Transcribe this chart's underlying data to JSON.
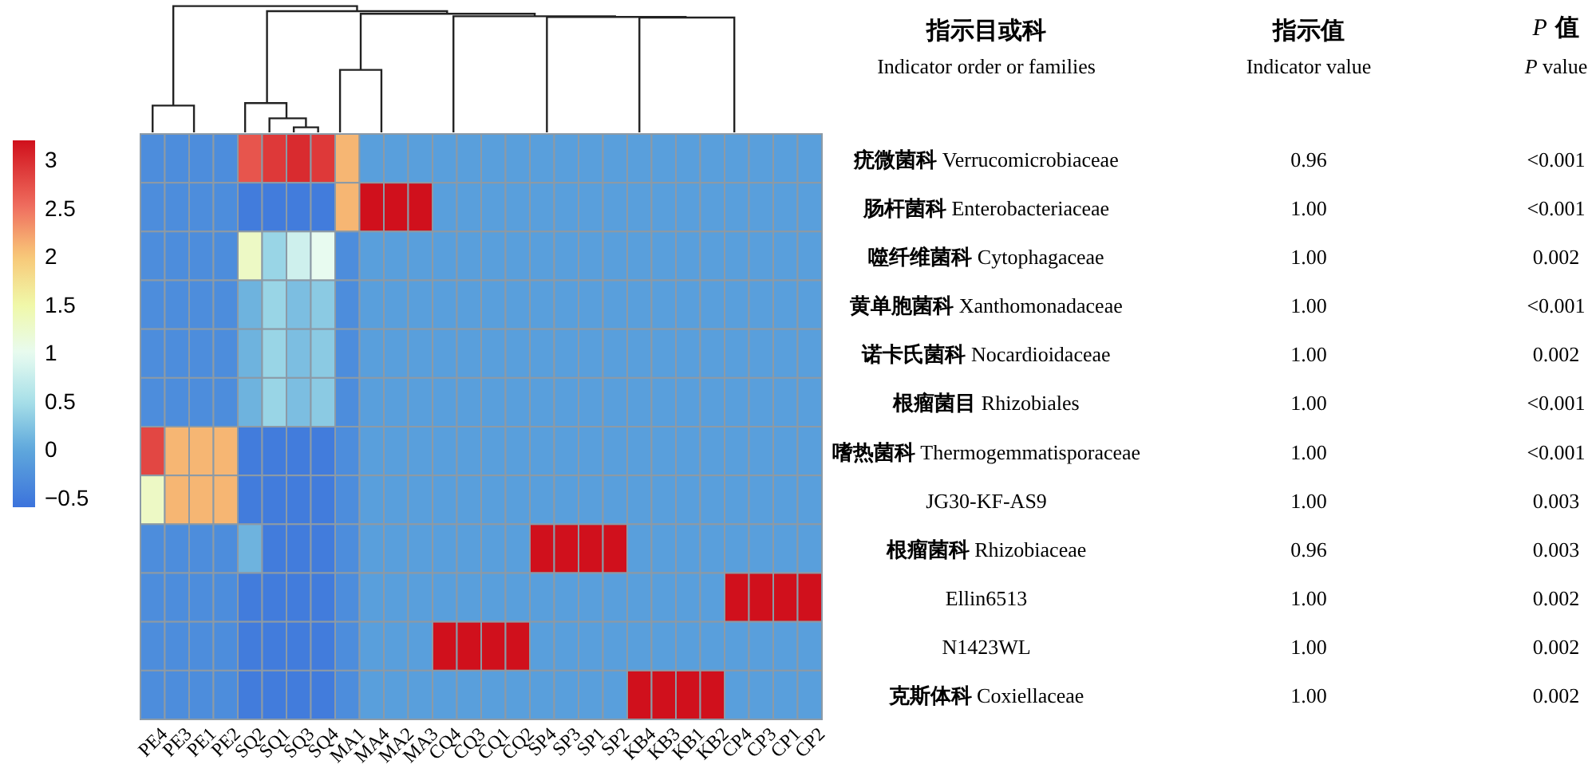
{
  "chart_data": {
    "type": "heatmap",
    "categories": [
      "PE4",
      "PE3",
      "PE1",
      "PE2",
      "SQ2",
      "SQ1",
      "SQ3",
      "SQ4",
      "MA1",
      "MA4",
      "MA2",
      "MA3",
      "CQ4",
      "CQ3",
      "CQ1",
      "CQ2",
      "SP4",
      "SP3",
      "SP1",
      "SP2",
      "KB4",
      "KB3",
      "KB1",
      "KB2",
      "CP4",
      "CP3",
      "CP1",
      "CP2"
    ],
    "y_categories": [
      "疣微菌科 Verrucomicrobiaceae",
      "肠杆菌科 Enterobacteriaceae",
      "噬纤维菌科 Cytophagaceae",
      "黄单胞菌科 Xanthomonadaceae",
      "诺卡氏菌科 Nocardioidaceae",
      "根瘤菌目 Rhizobiales",
      "嗜热菌科 Thermogemmatisporaceae",
      "JG30-KF-AS9",
      "根瘤菌科 Rhizobiaceae",
      "Ellin6513",
      "N1423WL",
      "克斯体科 Coxiellaceae"
    ],
    "cells": [
      [
        -0.3,
        -0.3,
        -0.3,
        -0.3,
        2.7,
        2.9,
        3.0,
        2.9,
        2.1,
        -0.1,
        -0.1,
        -0.1,
        -0.1,
        -0.1,
        -0.1,
        -0.1,
        -0.1,
        -0.1,
        -0.1,
        -0.1,
        -0.1,
        -0.1,
        -0.1,
        -0.1,
        -0.1,
        -0.1,
        -0.1,
        -0.1
      ],
      [
        -0.3,
        -0.3,
        -0.3,
        -0.3,
        -0.5,
        -0.5,
        -0.5,
        -0.5,
        2.1,
        3.2,
        3.2,
        3.2,
        -0.1,
        -0.1,
        -0.1,
        -0.1,
        -0.1,
        -0.1,
        -0.1,
        -0.1,
        -0.1,
        -0.1,
        -0.1,
        -0.1,
        -0.1,
        -0.1,
        -0.1,
        -0.1
      ],
      [
        -0.3,
        -0.3,
        -0.3,
        -0.3,
        1.3,
        0.4,
        0.8,
        1.0,
        -0.3,
        -0.1,
        -0.1,
        -0.1,
        -0.1,
        -0.1,
        -0.1,
        -0.1,
        -0.1,
        -0.1,
        -0.1,
        -0.1,
        -0.1,
        -0.1,
        -0.1,
        -0.1,
        -0.1,
        -0.1,
        -0.1,
        -0.1
      ],
      [
        -0.3,
        -0.3,
        -0.3,
        -0.3,
        0.1,
        0.4,
        0.2,
        0.3,
        -0.3,
        -0.1,
        -0.1,
        -0.1,
        -0.1,
        -0.1,
        -0.1,
        -0.1,
        -0.1,
        -0.1,
        -0.1,
        -0.1,
        -0.1,
        -0.1,
        -0.1,
        -0.1,
        -0.1,
        -0.1,
        -0.1,
        -0.1
      ],
      [
        -0.3,
        -0.3,
        -0.3,
        -0.3,
        0.1,
        0.4,
        0.2,
        0.3,
        -0.3,
        -0.1,
        -0.1,
        -0.1,
        -0.1,
        -0.1,
        -0.1,
        -0.1,
        -0.1,
        -0.1,
        -0.1,
        -0.1,
        -0.1,
        -0.1,
        -0.1,
        -0.1,
        -0.1,
        -0.1,
        -0.1,
        -0.1
      ],
      [
        -0.3,
        -0.3,
        -0.3,
        -0.3,
        0.1,
        0.4,
        0.2,
        0.3,
        -0.3,
        -0.1,
        -0.1,
        -0.1,
        -0.1,
        -0.1,
        -0.1,
        -0.1,
        -0.1,
        -0.1,
        -0.1,
        -0.1,
        -0.1,
        -0.1,
        -0.1,
        -0.1,
        -0.1,
        -0.1,
        -0.1,
        -0.1
      ],
      [
        2.8,
        2.1,
        2.1,
        2.1,
        -0.5,
        -0.5,
        -0.5,
        -0.5,
        -0.3,
        -0.1,
        -0.1,
        -0.1,
        -0.1,
        -0.1,
        -0.1,
        -0.1,
        -0.1,
        -0.1,
        -0.1,
        -0.1,
        -0.1,
        -0.1,
        -0.1,
        -0.1,
        -0.1,
        -0.1,
        -0.1,
        -0.1
      ],
      [
        1.3,
        2.1,
        2.1,
        2.1,
        -0.5,
        -0.5,
        -0.5,
        -0.5,
        -0.3,
        -0.1,
        -0.1,
        -0.1,
        -0.1,
        -0.1,
        -0.1,
        -0.1,
        -0.1,
        -0.1,
        -0.1,
        -0.1,
        -0.1,
        -0.1,
        -0.1,
        -0.1,
        -0.1,
        -0.1,
        -0.1,
        -0.1
      ],
      [
        -0.3,
        -0.3,
        -0.3,
        -0.3,
        0.1,
        -0.5,
        -0.5,
        -0.5,
        -0.3,
        -0.1,
        -0.1,
        -0.1,
        -0.1,
        -0.1,
        -0.1,
        -0.1,
        3.2,
        3.2,
        3.2,
        3.2,
        -0.1,
        -0.1,
        -0.1,
        -0.1,
        -0.1,
        -0.1,
        -0.1,
        -0.1
      ],
      [
        -0.3,
        -0.3,
        -0.3,
        -0.3,
        -0.5,
        -0.5,
        -0.5,
        -0.5,
        -0.3,
        -0.1,
        -0.1,
        -0.1,
        -0.1,
        -0.1,
        -0.1,
        -0.1,
        -0.1,
        -0.1,
        -0.1,
        -0.1,
        -0.1,
        -0.1,
        -0.1,
        -0.1,
        3.2,
        3.2,
        3.2,
        3.2
      ],
      [
        -0.3,
        -0.3,
        -0.3,
        -0.3,
        -0.5,
        -0.5,
        -0.5,
        -0.5,
        -0.3,
        -0.1,
        -0.1,
        -0.1,
        3.2,
        3.2,
        3.2,
        3.2,
        -0.1,
        -0.1,
        -0.1,
        -0.1,
        -0.1,
        -0.1,
        -0.1,
        -0.1,
        -0.1,
        -0.1,
        -0.1,
        -0.1
      ],
      [
        -0.3,
        -0.3,
        -0.3,
        -0.3,
        -0.5,
        -0.5,
        -0.5,
        -0.5,
        -0.3,
        -0.1,
        -0.1,
        -0.1,
        -0.1,
        -0.1,
        -0.1,
        -0.1,
        -0.1,
        -0.1,
        -0.1,
        -0.1,
        3.2,
        3.2,
        3.2,
        3.2,
        -0.1,
        -0.1,
        -0.1,
        -0.1
      ]
    ],
    "clim": [
      -0.6,
      3.2
    ],
    "cticks": [
      {
        "value": -0.5,
        "label": "−0.5"
      },
      0,
      0.5,
      1,
      1.5,
      2,
      2.5,
      3
    ],
    "annotations": [
      "指示目或科",
      "Indicator order or families",
      "指示值",
      "Indicator value",
      "P 值",
      "P value",
      "0.96",
      "1.00",
      "1.00",
      "1.00",
      "1.00",
      "1.00",
      "1.00",
      "1.00",
      "0.96",
      "1.00",
      "1.00",
      "1.00",
      "<0.001",
      "<0.001",
      "0.002",
      "<0.001",
      "0.002",
      "<0.001",
      "<0.001",
      "0.003",
      "0.003",
      "0.002",
      "0.002",
      "0.002"
    ]
  }
}
